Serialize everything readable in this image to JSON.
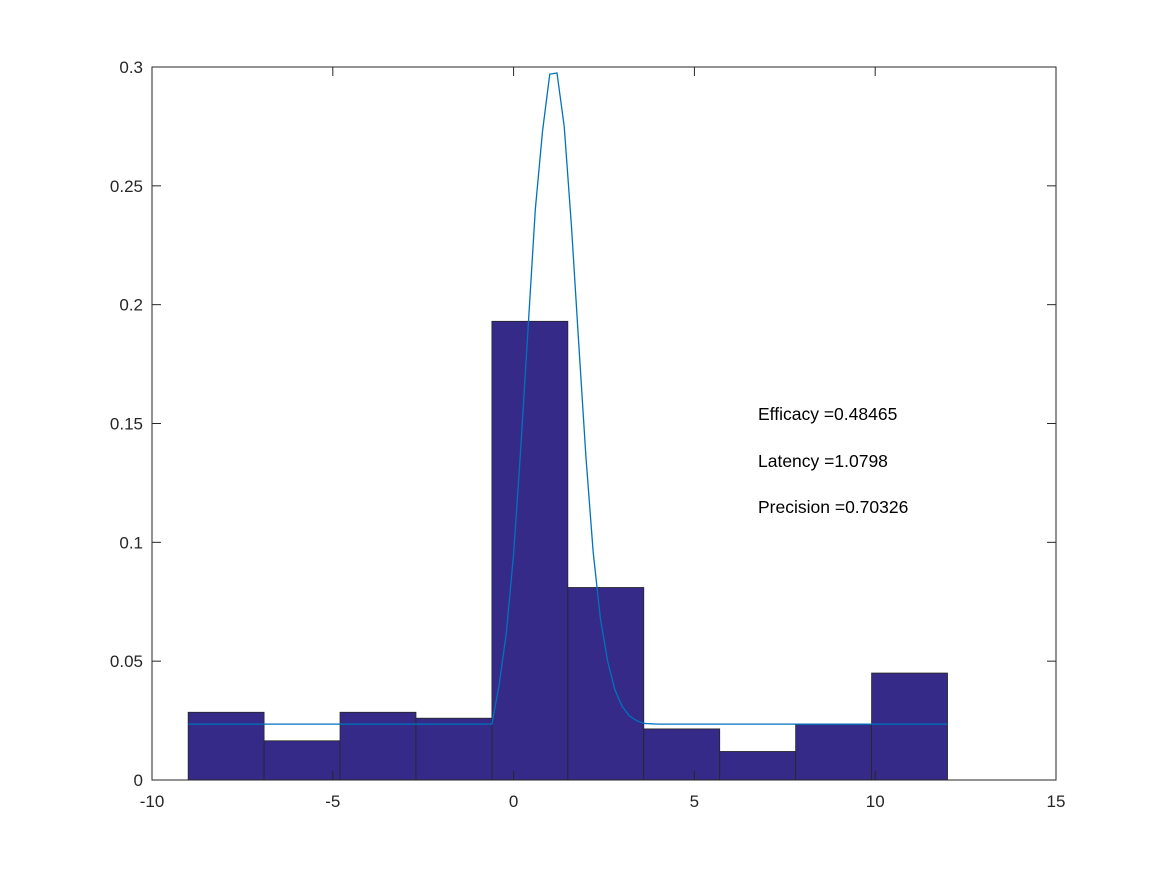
{
  "chart_data": {
    "type": "bar",
    "title": "",
    "xlabel": "",
    "ylabel": "",
    "xlim": [
      -10,
      15
    ],
    "ylim": [
      0,
      0.3
    ],
    "xticks": [
      -10,
      -5,
      0,
      5,
      10,
      15
    ],
    "xtick_labels": [
      "-10",
      "-5",
      "0",
      "5",
      "10",
      "15"
    ],
    "yticks": [
      0,
      0.05,
      0.1,
      0.15,
      0.2,
      0.25,
      0.3
    ],
    "ytick_labels": [
      "0",
      "0.05",
      "0.1",
      "0.15",
      "0.2",
      "0.25",
      "0.3"
    ],
    "grid": false,
    "bar_color": "#352a87",
    "bar_edge_color": "#262626",
    "line_color": "#0072bd",
    "histogram": {
      "bin_edges": [
        -9.0,
        -6.9,
        -4.8,
        -2.7,
        -0.6,
        1.5,
        3.6,
        5.7,
        7.8,
        9.9,
        12.0
      ],
      "values": [
        0.0285,
        0.0165,
        0.0285,
        0.026,
        0.193,
        0.081,
        0.0215,
        0.012,
        0.0235,
        0.045
      ]
    },
    "fit_curve": {
      "x": [
        -9.0,
        -0.6,
        -0.4,
        -0.2,
        0.0,
        0.2,
        0.4,
        0.6,
        0.8,
        1.0,
        1.2,
        1.4,
        1.6,
        1.8,
        2.0,
        2.2,
        2.4,
        2.6,
        2.8,
        3.0,
        3.2,
        3.4,
        3.6,
        4.0,
        12.0
      ],
      "y": [
        0.0235,
        0.0235,
        0.04,
        0.062,
        0.095,
        0.14,
        0.19,
        0.24,
        0.273,
        0.297,
        0.2975,
        0.275,
        0.233,
        0.184,
        0.136,
        0.096,
        0.068,
        0.05,
        0.038,
        0.031,
        0.027,
        0.025,
        0.0238,
        0.0235,
        0.0235
      ]
    },
    "annotations": [
      {
        "label": "Efficacy",
        "value": "=0.48465"
      },
      {
        "label": "Latency",
        "value": "=1.0798"
      },
      {
        "label": "Precision",
        "value": "=0.70326"
      }
    ]
  }
}
